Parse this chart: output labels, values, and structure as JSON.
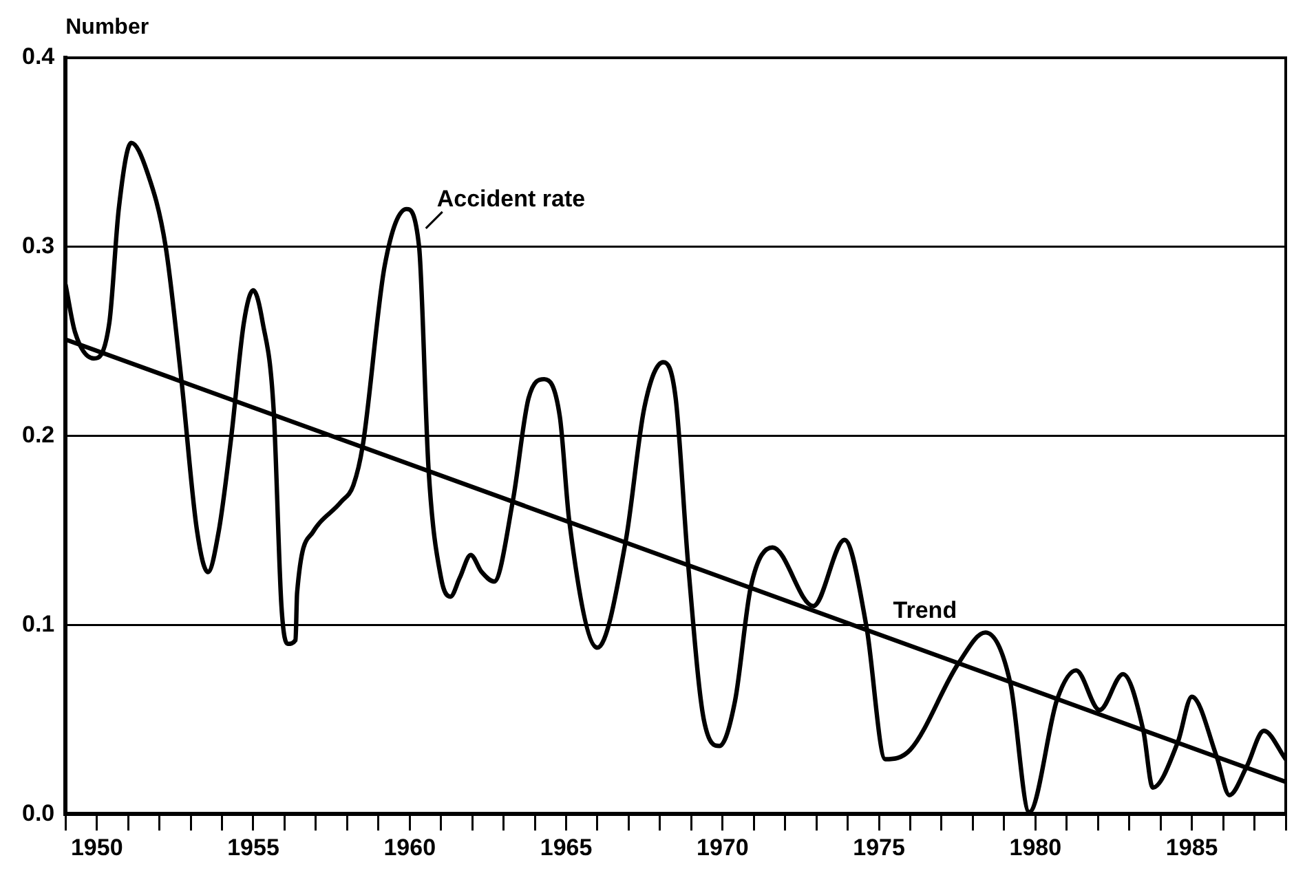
{
  "chart_data": {
    "type": "line",
    "ylabel": "Number",
    "xlim": [
      1949,
      1988
    ],
    "xticks": [
      {
        "value": 1949,
        "label": null
      },
      1950,
      {
        "value": 1951,
        "label": null
      },
      {
        "value": 1952,
        "label": null
      },
      {
        "value": 1953,
        "label": null
      },
      {
        "value": 1954,
        "label": null
      },
      1955,
      {
        "value": 1956,
        "label": null
      },
      {
        "value": 1957,
        "label": null
      },
      {
        "value": 1958,
        "label": null
      },
      {
        "value": 1959,
        "label": null
      },
      1960,
      {
        "value": 1961,
        "label": null
      },
      {
        "value": 1962,
        "label": null
      },
      {
        "value": 1963,
        "label": null
      },
      {
        "value": 1964,
        "label": null
      },
      1965,
      {
        "value": 1966,
        "label": null
      },
      {
        "value": 1967,
        "label": null
      },
      {
        "value": 1968,
        "label": null
      },
      {
        "value": 1969,
        "label": null
      },
      1970,
      {
        "value": 1971,
        "label": null
      },
      {
        "value": 1972,
        "label": null
      },
      {
        "value": 1973,
        "label": null
      },
      {
        "value": 1974,
        "label": null
      },
      1975,
      {
        "value": 1976,
        "label": null
      },
      {
        "value": 1977,
        "label": null
      },
      {
        "value": 1978,
        "label": null
      },
      {
        "value": 1979,
        "label": null
      },
      1980,
      {
        "value": 1981,
        "label": null
      },
      {
        "value": 1982,
        "label": null
      },
      {
        "value": 1983,
        "label": null
      },
      {
        "value": 1984,
        "label": null
      },
      1985,
      {
        "value": 1986,
        "label": null
      },
      {
        "value": 1987,
        "label": null
      },
      {
        "value": 1988,
        "label": null
      }
    ],
    "ylim": [
      0,
      0.4
    ],
    "yticks": [
      {
        "value": 0,
        "label": "0.0"
      },
      0.1,
      0.2,
      0.3,
      0.4
    ],
    "grid": "y",
    "legend": false,
    "marker": "none",
    "line_style": "solid",
    "series": [
      {
        "name": "Accident rate",
        "color": "#000000",
        "x": [
          1949,
          1949.3,
          1949.9,
          1950.4,
          1950.7,
          1951.1,
          1951.6,
          1952.2,
          1952.7,
          1953.2,
          1953.55,
          1953.9,
          1954.3,
          1954.7,
          1955.0,
          1955.3,
          1955.65,
          1955.9,
          1956.1,
          1956.35,
          1956.4,
          1956.9,
          1957.8,
          1958.2,
          1958.5,
          1959.2,
          1959.9,
          1960.3,
          1960.6,
          1961.0,
          1961.3,
          1961.6,
          1961.95,
          1962.3,
          1962.7,
          1963.3,
          1963.8,
          1964.3,
          1964.8,
          1965.1,
          1966.0,
          1966.9,
          1967.5,
          1968.1,
          1968.5,
          1968.9,
          1969.4,
          1969.9,
          1970.4,
          1970.9,
          1971.6,
          1972.9,
          1973.9,
          1974.6,
          1975.2,
          1976.0,
          1977.55,
          1978.4,
          1979.2,
          1979.8,
          1980.7,
          1981.3,
          1982.05,
          1982.8,
          1983.45,
          1983.75,
          1984.55,
          1985.0,
          1985.8,
          1986.2,
          1986.75,
          1987.3,
          1988
        ],
        "values": [
          0.28,
          0.255,
          0.241,
          0.26,
          0.32,
          0.355,
          0.34,
          0.3,
          0.23,
          0.15,
          0.128,
          0.15,
          0.2,
          0.26,
          0.277,
          0.26,
          0.214,
          0.11,
          0.09,
          0.092,
          0.117,
          0.149,
          0.165,
          0.174,
          0.195,
          0.29,
          0.32,
          0.3,
          0.183,
          0.125,
          0.115,
          0.125,
          0.137,
          0.128,
          0.123,
          0.166,
          0.22,
          0.23,
          0.21,
          0.155,
          0.088,
          0.144,
          0.215,
          0.239,
          0.22,
          0.132,
          0.05,
          0.036,
          0.06,
          0.12,
          0.141,
          0.11,
          0.145,
          0.099,
          0.029,
          0.034,
          0.08,
          0.096,
          0.069,
          0.001,
          0.061,
          0.076,
          0.055,
          0.074,
          0.044,
          0.014,
          0.038,
          0.062,
          0.03,
          0.01,
          0.025,
          0.044,
          0.029
        ]
      },
      {
        "name": "Trend",
        "color": "#000000",
        "x": [
          1949,
          1988
        ],
        "values": [
          0.251,
          0.017
        ]
      }
    ]
  }
}
